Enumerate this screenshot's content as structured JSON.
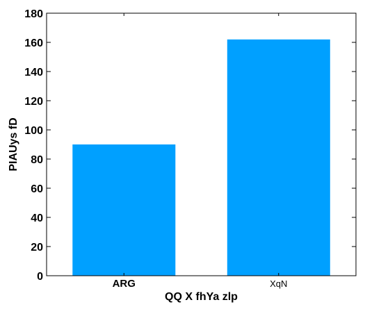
{
  "chart_data": {
    "type": "bar",
    "categories": [
      "ARG",
      "XqN"
    ],
    "values": [
      90,
      162
    ],
    "title": "",
    "xlabel": "QQ X fhYa zlp",
    "ylabel": "PIAUys fD",
    "ylim": [
      0,
      180
    ],
    "yticks": [
      0,
      20,
      40,
      60,
      80,
      100,
      120,
      140,
      160,
      180
    ],
    "grid": false,
    "legend": "none",
    "bar_color": "#00a0ff",
    "axis_color": "#000000",
    "background": "#ffffff"
  }
}
